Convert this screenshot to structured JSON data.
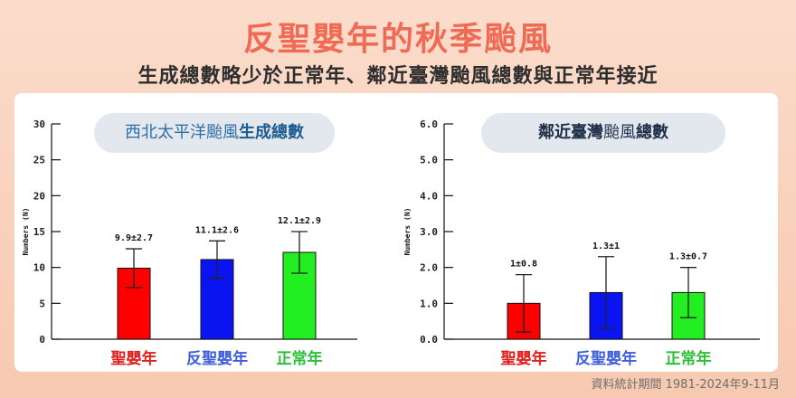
{
  "header": {
    "title": "反聖嬰年的秋季颱風",
    "subtitle": "生成總數略少於正常年、鄰近臺灣颱風總數與正常年接近"
  },
  "footnote": "資料統計期間 1981-2024年9-11月",
  "colors": {
    "title": "#ef6b55",
    "el_nino": "#ff0000",
    "la_nina": "#0a14f0",
    "normal": "#22ee22",
    "label_el_nino": "#e0201c",
    "label_la_nina": "#3f5fd8",
    "label_normal": "#2cbf3a"
  },
  "chart_data": [
    {
      "type": "bar",
      "title_parts": [
        "西北太平洋颱風",
        "生成總數"
      ],
      "ylabel": "Numbers (N)",
      "ylim": [
        0,
        30
      ],
      "yticks": [
        "0",
        "5",
        "10",
        "15",
        "20",
        "25",
        "30"
      ],
      "ytick_values": [
        0,
        5,
        10,
        15,
        20,
        25,
        30
      ],
      "categories": [
        "聖嬰年",
        "反聖嬰年",
        "正常年"
      ],
      "values": [
        9.9,
        11.1,
        12.1
      ],
      "errors": [
        2.7,
        2.6,
        2.9
      ],
      "value_labels": [
        "9.9±2.7",
        "11.1±2.6",
        "12.1±2.9"
      ]
    },
    {
      "type": "bar",
      "title_parts": [
        "鄰近臺灣",
        "颱風",
        "總數"
      ],
      "ylabel": "Numbers (N)",
      "ylim": [
        0,
        6
      ],
      "yticks": [
        "0.0",
        "1.0",
        "2.0",
        "3.0",
        "4.0",
        "5.0",
        "6.0"
      ],
      "ytick_values": [
        0,
        1,
        2,
        3,
        4,
        5,
        6
      ],
      "categories": [
        "聖嬰年",
        "反聖嬰年",
        "正常年"
      ],
      "values": [
        1.0,
        1.3,
        1.3
      ],
      "errors": [
        0.8,
        1.0,
        0.7
      ],
      "value_labels": [
        "1±0.8",
        "1.3±1",
        "1.3±0.7"
      ]
    }
  ]
}
